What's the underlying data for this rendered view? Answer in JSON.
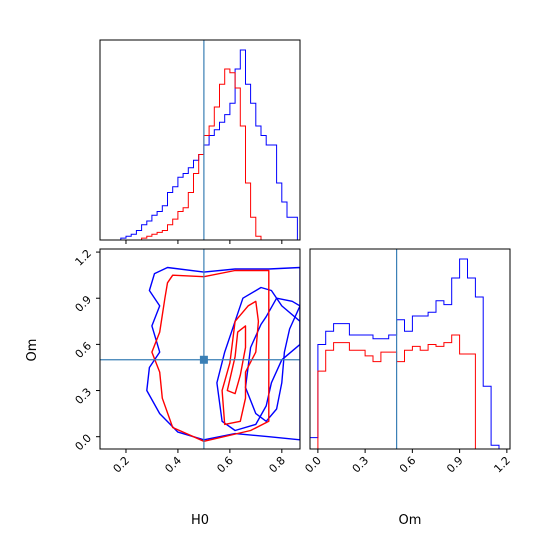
{
  "chart_data": {
    "type": "corner",
    "colors": {
      "series_1": "#0000ff",
      "series_2": "#ff0000",
      "truth": "#3a7fb5"
    },
    "truth": {
      "H0": 0.5,
      "Om": 0.5
    },
    "panels": [
      {
        "id": "H0-histogram",
        "type": "histogram",
        "xlim": [
          0.1,
          0.87
        ],
        "xticks": [
          0.2,
          0.4,
          0.6,
          0.8
        ],
        "bin_edges": [
          0.1,
          0.12,
          0.14,
          0.16,
          0.18,
          0.2,
          0.22,
          0.24,
          0.26,
          0.28,
          0.3,
          0.32,
          0.34,
          0.36,
          0.38,
          0.4,
          0.42,
          0.44,
          0.46,
          0.48,
          0.5,
          0.52,
          0.54,
          0.56,
          0.58,
          0.6,
          0.62,
          0.64,
          0.66,
          0.68,
          0.7,
          0.72,
          0.74,
          0.76,
          0.78,
          0.8,
          0.82,
          0.84,
          0.86
        ],
        "series": [
          {
            "color": "blue",
            "counts": [
              0,
              0,
              0,
              0,
              0.01,
              0.02,
              0.03,
              0.05,
              0.08,
              0.1,
              0.13,
              0.15,
              0.18,
              0.25,
              0.28,
              0.33,
              0.35,
              0.38,
              0.42,
              0.45,
              0.5,
              0.55,
              0.58,
              0.62,
              0.66,
              0.72,
              0.9,
              1.0,
              0.82,
              0.72,
              0.6,
              0.55,
              0.5,
              0.5,
              0.3,
              0.2,
              0.12,
              0.12
            ]
          },
          {
            "color": "red",
            "counts": [
              0,
              0,
              0,
              0,
              0,
              0,
              0,
              0,
              0.01,
              0.02,
              0.03,
              0.04,
              0.05,
              0.08,
              0.11,
              0.15,
              0.17,
              0.25,
              0.35,
              0.45,
              0.55,
              0.6,
              0.7,
              0.82,
              0.9,
              0.88,
              0.8,
              0.6,
              0.3,
              0.12,
              0.02,
              0,
              0,
              0,
              0,
              0,
              0,
              0
            ]
          }
        ]
      },
      {
        "id": "Om-histogram",
        "type": "histogram",
        "xlim": [
          -0.05,
          1.22
        ],
        "xticks": [
          0.0,
          0.3,
          0.6,
          0.9,
          1.2
        ],
        "xtick_labels": [
          "0.0",
          "0.3",
          "0.6",
          "0.9",
          "1.2"
        ],
        "xlabel": "Om",
        "bin_edges": [
          -0.05,
          0.0,
          0.05,
          0.1,
          0.15,
          0.2,
          0.25,
          0.3,
          0.35,
          0.4,
          0.45,
          0.5,
          0.55,
          0.6,
          0.65,
          0.7,
          0.75,
          0.8,
          0.85,
          0.9,
          0.95,
          1.0,
          1.05,
          1.1,
          1.15
        ],
        "series": [
          {
            "color": "blue",
            "counts": [
              0.06,
              0.55,
              0.62,
              0.66,
              0.66,
              0.6,
              0.6,
              0.6,
              0.58,
              0.58,
              0.6,
              0.68,
              0.62,
              0.7,
              0.7,
              0.72,
              0.78,
              0.76,
              0.9,
              1.0,
              0.9,
              0.8,
              0.33,
              0.02
            ]
          },
          {
            "color": "red",
            "counts": [
              0,
              0.41,
              0.52,
              0.56,
              0.56,
              0.52,
              0.52,
              0.49,
              0.46,
              0.51,
              0.51,
              0.46,
              0.52,
              0.54,
              0.52,
              0.55,
              0.54,
              0.56,
              0.6,
              0.5,
              0.5,
              0,
              0,
              0
            ]
          }
        ]
      },
      {
        "id": "H0-Om-contours",
        "type": "contour",
        "xlabel": "H0",
        "ylabel": "Om",
        "xlim": [
          0.1,
          0.87
        ],
        "ylim": [
          -0.08,
          1.22
        ],
        "xticks": [
          0.2,
          0.4,
          0.6,
          0.8
        ],
        "xtick_labels": [
          "0.2",
          "0.4",
          "0.6",
          "0.8"
        ],
        "yticks": [
          0.0,
          0.3,
          0.6,
          0.9,
          1.2
        ],
        "ytick_labels": [
          "0.0",
          "0.3",
          "0.6",
          "0.9",
          "1.2"
        ],
        "series": [
          {
            "color": "blue",
            "levels": [
              [
                [
                  0.36,
                  1.1
                ],
                [
                  0.5,
                  1.07
                ],
                [
                  0.62,
                  1.09
                ],
                [
                  0.75,
                  1.09
                ],
                [
                  0.87,
                  1.1
                ],
                [
                  0.87,
                  -0.02
                ],
                [
                  0.75,
                  0.0
                ],
                [
                  0.62,
                  0.02
                ],
                [
                  0.5,
                  -0.02
                ],
                [
                  0.4,
                  0.03
                ],
                [
                  0.33,
                  0.15
                ],
                [
                  0.28,
                  0.3
                ],
                [
                  0.29,
                  0.45
                ],
                [
                  0.33,
                  0.55
                ],
                [
                  0.3,
                  0.72
                ],
                [
                  0.33,
                  0.85
                ],
                [
                  0.29,
                  0.95
                ],
                [
                  0.31,
                  1.06
                ]
              ],
              [
                [
                  0.57,
                  0.1
                ],
                [
                  0.55,
                  0.35
                ],
                [
                  0.58,
                  0.55
                ],
                [
                  0.62,
                  0.75
                ],
                [
                  0.65,
                  0.9
                ],
                [
                  0.72,
                  0.97
                ],
                [
                  0.76,
                  0.95
                ],
                [
                  0.8,
                  0.85
                ],
                [
                  0.87,
                  0.75
                ],
                [
                  0.87,
                  0.6
                ],
                [
                  0.8,
                  0.5
                ],
                [
                  0.76,
                  0.35
                ],
                [
                  0.74,
                  0.2
                ],
                [
                  0.7,
                  0.08
                ],
                [
                  0.62,
                  0.04
                ]
              ],
              [
                [
                  0.68,
                  0.58
                ],
                [
                  0.72,
                  0.73
                ],
                [
                  0.74,
                  0.78
                ],
                [
                  0.78,
                  0.9
                ],
                [
                  0.84,
                  0.88
                ],
                [
                  0.87,
                  0.85
                ],
                [
                  0.83,
                  0.7
                ],
                [
                  0.81,
                  0.55
                ],
                [
                  0.8,
                  0.35
                ],
                [
                  0.78,
                  0.18
                ],
                [
                  0.74,
                  0.1
                ],
                [
                  0.7,
                  0.15
                ],
                [
                  0.66,
                  0.32
                ]
              ]
            ]
          },
          {
            "color": "red",
            "levels": [
              [
                [
                  0.38,
                  1.05
                ],
                [
                  0.5,
                  1.04
                ],
                [
                  0.62,
                  1.08
                ],
                [
                  0.75,
                  1.08
                ],
                [
                  0.75,
                  0.1
                ],
                [
                  0.68,
                  0.04
                ],
                [
                  0.5,
                  -0.03
                ],
                [
                  0.38,
                  0.06
                ],
                [
                  0.34,
                  0.25
                ],
                [
                  0.33,
                  0.42
                ],
                [
                  0.3,
                  0.55
                ],
                [
                  0.33,
                  0.68
                ],
                [
                  0.35,
                  0.9
                ],
                [
                  0.36,
                  1.0
                ]
              ],
              [
                [
                  0.58,
                  0.08
                ],
                [
                  0.57,
                  0.3
                ],
                [
                  0.6,
                  0.48
                ],
                [
                  0.62,
                  0.75
                ],
                [
                  0.67,
                  0.85
                ],
                [
                  0.7,
                  0.88
                ],
                [
                  0.71,
                  0.75
                ],
                [
                  0.7,
                  0.55
                ],
                [
                  0.66,
                  0.42
                ],
                [
                  0.66,
                  0.25
                ],
                [
                  0.64,
                  0.1
                ]
              ],
              [
                [
                  0.59,
                  0.3
                ],
                [
                  0.62,
                  0.52
                ],
                [
                  0.63,
                  0.68
                ],
                [
                  0.66,
                  0.72
                ],
                [
                  0.66,
                  0.58
                ],
                [
                  0.64,
                  0.4
                ],
                [
                  0.62,
                  0.28
                ]
              ]
            ]
          }
        ]
      }
    ]
  }
}
